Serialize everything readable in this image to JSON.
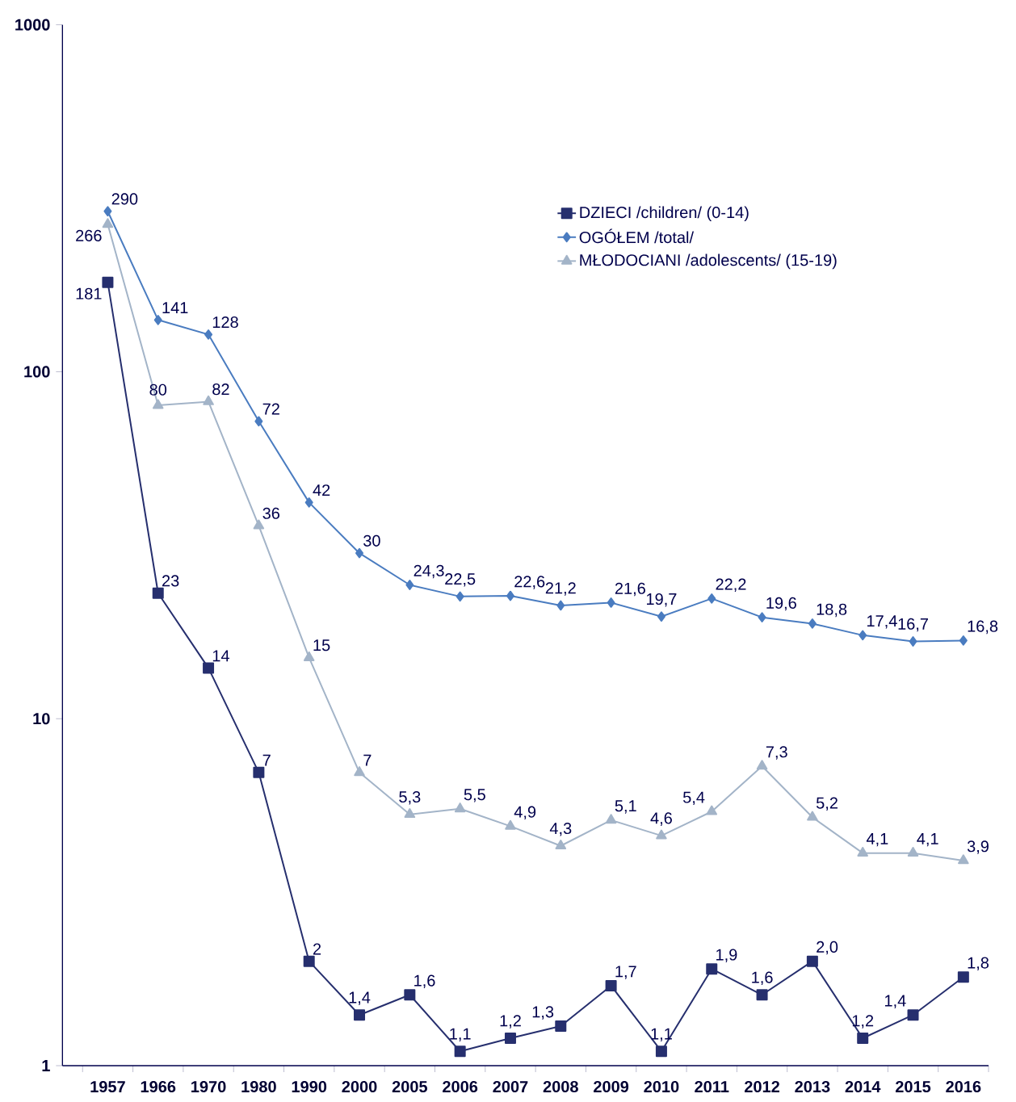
{
  "chart_data": {
    "type": "line",
    "log": "y",
    "legend": "top right",
    "ylim": [
      1,
      1000
    ],
    "yticks": [
      1,
      10,
      100,
      1000
    ],
    "categories": [
      "1957",
      "1966",
      "1970",
      "1980",
      "1990",
      "2000",
      "2005",
      "2006",
      "2007",
      "2008",
      "2009",
      "2010",
      "2011",
      "2012",
      "2013",
      "2014",
      "2015",
      "2016"
    ],
    "series": [
      {
        "name": "DZIECI /children/ (0-14)",
        "color": "#262f6e",
        "marker": "square",
        "values": [
          181,
          23,
          14,
          7,
          2,
          1.4,
          1.6,
          1.1,
          1.2,
          1.3,
          1.7,
          1.1,
          1.9,
          1.6,
          2.0,
          1.2,
          1.4,
          1.8
        ],
        "value_labels": [
          "181",
          "23",
          "14",
          "7",
          "2",
          "1,4",
          "1,6",
          "1,1",
          "1,2",
          "1,3",
          "1,7",
          "1,1",
          "1,9",
          "1,6",
          "2,0",
          "1,2",
          "1,4",
          "1,8"
        ]
      },
      {
        "name": "OGÓŁEM /total/",
        "color": "#4a7cc0",
        "marker": "diamond",
        "values": [
          290,
          141,
          128,
          72,
          42,
          30,
          24.3,
          22.5,
          22.6,
          21.2,
          21.6,
          19.7,
          22.2,
          19.6,
          18.8,
          17.4,
          16.7,
          16.8
        ],
        "value_labels": [
          "290",
          "141",
          "128",
          "72",
          "42",
          "30",
          "24,3",
          "22,5",
          "22,6",
          "21,2",
          "21,6",
          "19,7",
          "22,2",
          "19,6",
          "18,8",
          "17,4",
          "16,7",
          "16,8"
        ]
      },
      {
        "name": "MŁODOCIANI /adolescents/ (15-19)",
        "color": "#a3b4c8",
        "marker": "triangle",
        "values": [
          266,
          80,
          82,
          36,
          15,
          7,
          5.3,
          5.5,
          4.9,
          4.3,
          5.1,
          4.6,
          5.4,
          7.3,
          5.2,
          4.1,
          4.1,
          3.9
        ],
        "value_labels": [
          "266",
          "80",
          "82",
          "36",
          "15",
          "7",
          "5,3",
          "5,5",
          "4,9",
          "4,3",
          "5,1",
          "4,6",
          "5,4",
          "7,3",
          "5,2",
          "4,1",
          "4,1",
          "3,9"
        ]
      }
    ]
  }
}
